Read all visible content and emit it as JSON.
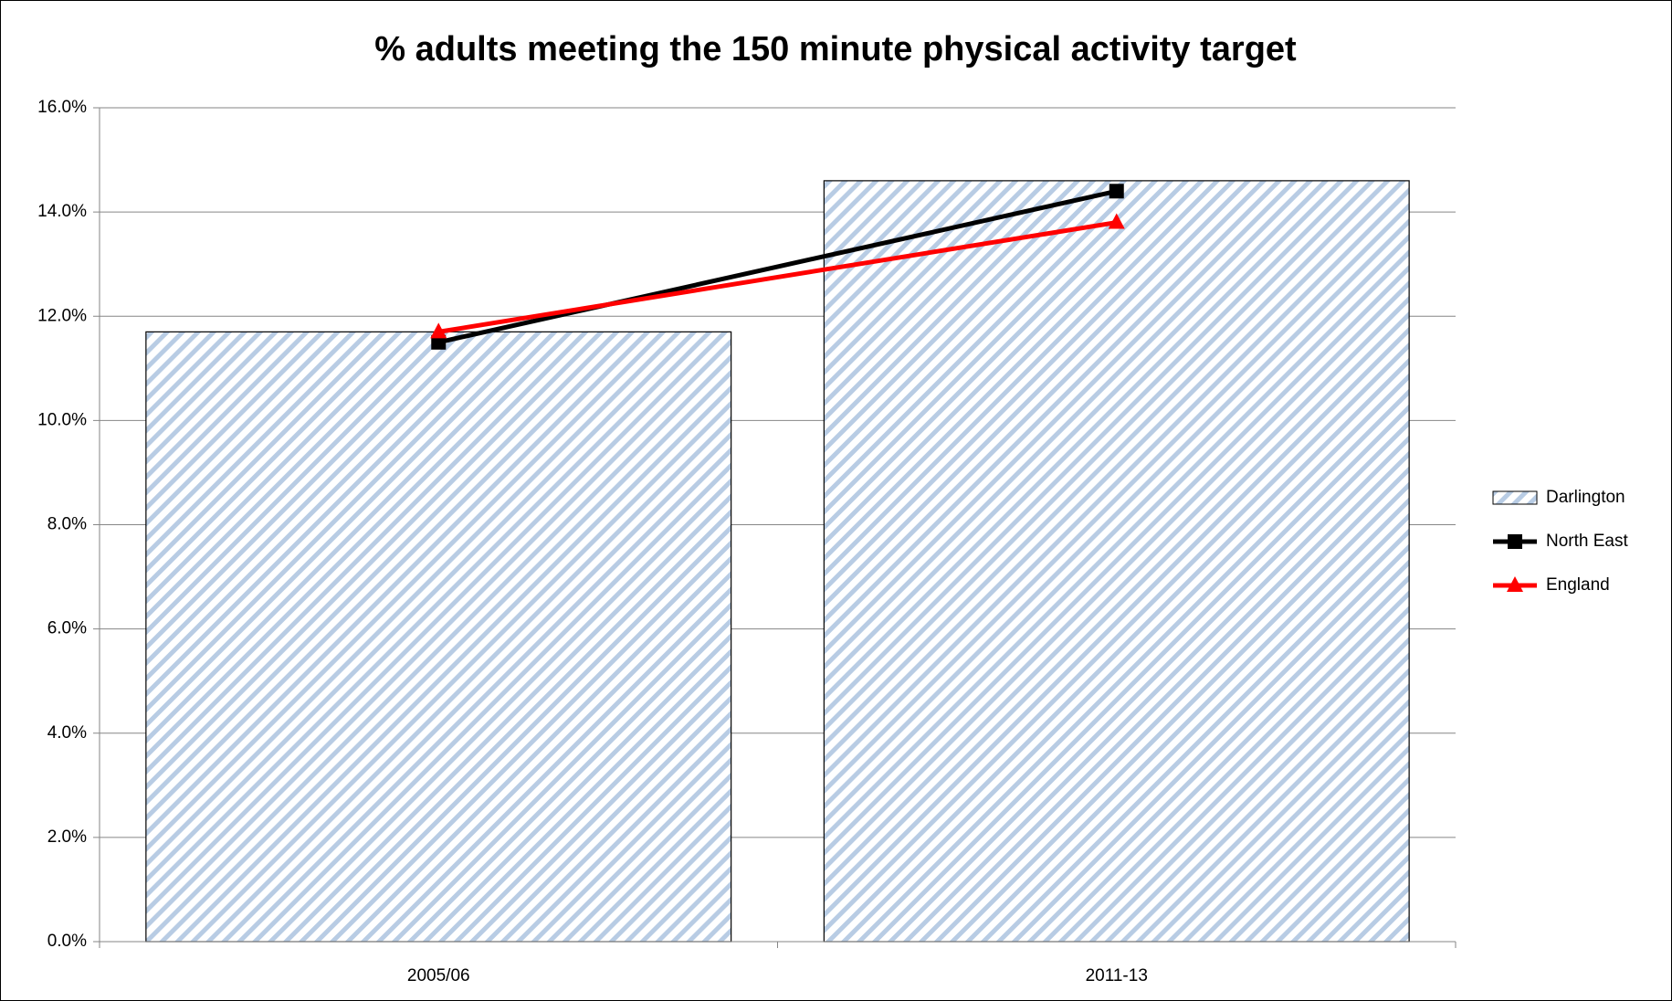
{
  "chart_data": {
    "type": "bar",
    "title": "% adults meeting the 150 minute physical activity target",
    "categories": [
      "2005/06",
      "2011-13"
    ],
    "series": [
      {
        "name": "Darlington",
        "type": "bar",
        "color": "#b8cce4",
        "pattern": "hatch",
        "values": [
          11.7,
          14.6
        ]
      },
      {
        "name": "North East",
        "type": "line",
        "marker": "square",
        "color": "#000000",
        "values": [
          11.5,
          14.4
        ]
      },
      {
        "name": "England",
        "type": "line",
        "marker": "triangle",
        "color": "#ff0000",
        "values": [
          11.7,
          13.8
        ]
      }
    ],
    "ylim": [
      0,
      16
    ],
    "yticks": [
      {
        "value": 0,
        "label": "0.0%"
      },
      {
        "value": 2,
        "label": "2.0%"
      },
      {
        "value": 4,
        "label": "4.0%"
      },
      {
        "value": 6,
        "label": "6.0%"
      },
      {
        "value": 8,
        "label": "8.0%"
      },
      {
        "value": 10,
        "label": "10.0%"
      },
      {
        "value": 12,
        "label": "12.0%"
      },
      {
        "value": 14,
        "label": "14.0%"
      },
      {
        "value": 16,
        "label": "16.0%"
      }
    ],
    "grid": true,
    "legend": "right"
  }
}
